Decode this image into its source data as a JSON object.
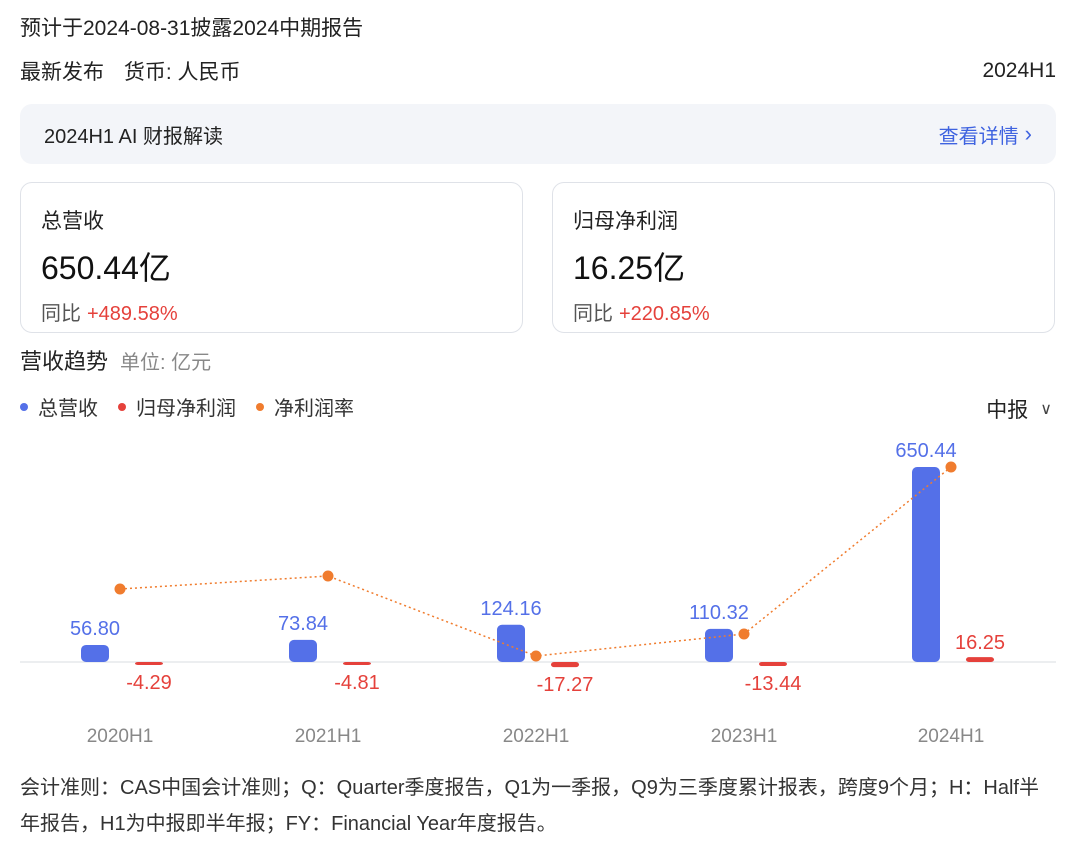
{
  "header": {
    "notice": "预计于2024-08-31披露2024中期报告",
    "latest": "最新发布",
    "currency": "货币: 人民币",
    "period": "2024H1"
  },
  "ai_bar": {
    "title": "2024H1 AI 财报解读",
    "link": "查看详情",
    "link_icon": "chevron-right-icon"
  },
  "cards": {
    "revenue": {
      "label": "总营收",
      "value": "650.44亿",
      "yoy_label": "同比",
      "yoy": "+489.58%"
    },
    "profit": {
      "label": "归母净利润",
      "value": "16.25亿",
      "yoy_label": "同比",
      "yoy": "+220.85%"
    }
  },
  "trend": {
    "title": "营收趋势",
    "unit": "单位: 亿元",
    "period_select": "中报",
    "legend": [
      "总营收",
      "归母净利润",
      "净利润率"
    ]
  },
  "colors": {
    "revenue": "#5470e8",
    "profit": "#e5413b",
    "margin": "#f07c2e",
    "accent_link": "#3f63e0"
  },
  "chart_data": {
    "type": "bar",
    "categories": [
      "2020H1",
      "2021H1",
      "2022H1",
      "2023H1",
      "2024H1"
    ],
    "series": [
      {
        "name": "总营收",
        "type": "bar",
        "values": [
          56.8,
          73.84,
          124.16,
          110.32,
          650.44
        ],
        "labels": [
          "56.80",
          "73.84",
          "124.16",
          "110.32",
          "650.44"
        ]
      },
      {
        "name": "归母净利润",
        "type": "bar",
        "values": [
          -4.29,
          -4.81,
          -17.27,
          -13.44,
          16.25
        ],
        "labels": [
          "-4.29",
          "-4.81",
          "-17.27",
          "-13.44",
          "16.25"
        ]
      },
      {
        "name": "净利润率",
        "type": "line",
        "values": [
          -7.55,
          -6.51,
          -13.91,
          -12.18,
          2.5
        ]
      }
    ],
    "legend_position": "top-left",
    "grid": false
  },
  "footnote": "会计准则：CAS中国会计准则；Q：Quarter季度报告，Q1为一季报，Q9为三季度累计报表，跨度9个月；H：Half半年报告，H1为中报即半年报；FY：Financial Year年度报告。"
}
